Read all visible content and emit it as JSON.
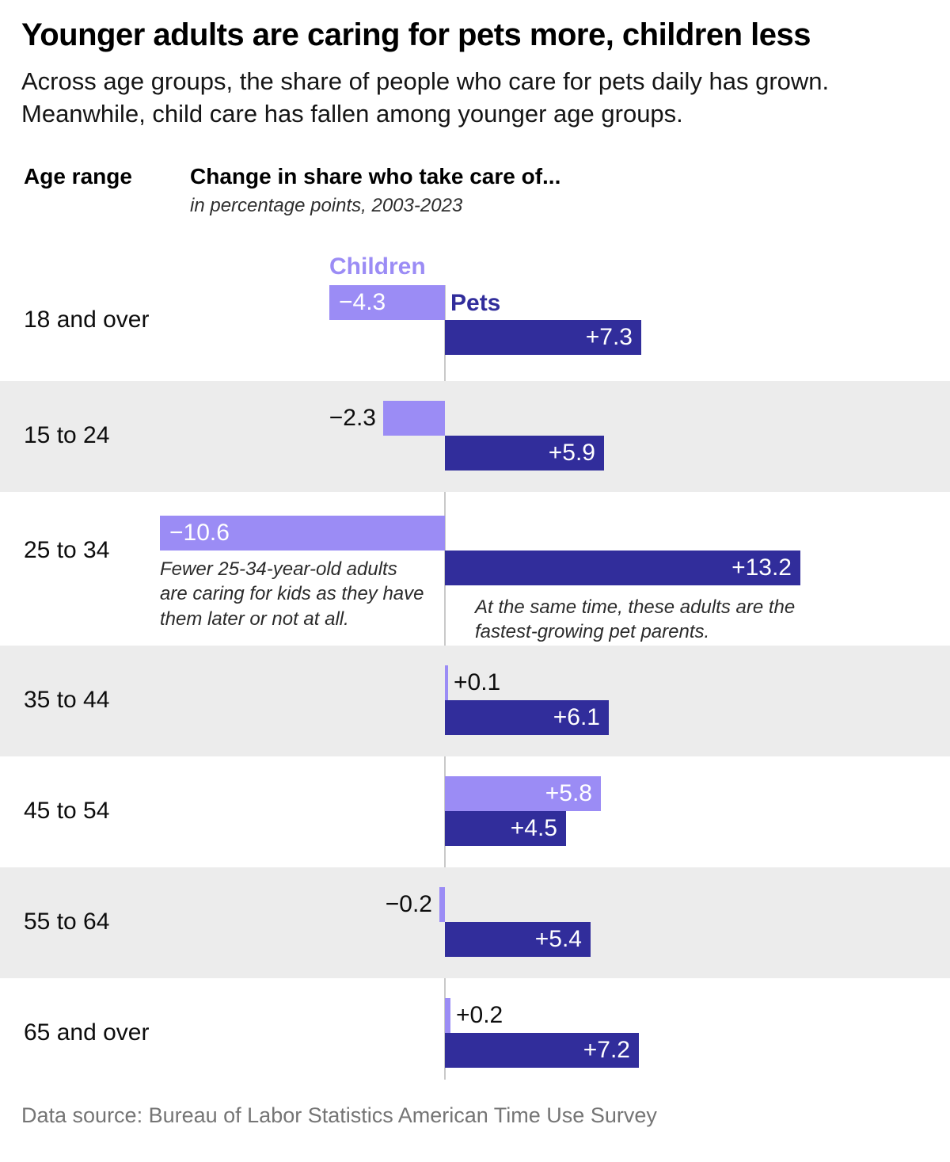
{
  "header": {
    "title": "Younger adults are caring for pets more, children less",
    "subtitle": "Across age groups, the share of people who care for pets daily has grown. Meanwhile, child care has fallen among younger age groups.",
    "col_age": "Age range",
    "col_change": "Change in share who take care of...",
    "col_change_sub": "in percentage points, 2003-2023"
  },
  "colors": {
    "children": "#9b8cf5",
    "pets": "#312d9b",
    "row_alt": "#ececec",
    "axis_line": "#c9c9c9",
    "inside_label": "#ffffff",
    "outside_label": "#0d0d0d",
    "source_text": "#757575"
  },
  "chart_data": {
    "type": "bar",
    "orientation": "horizontal-diverging",
    "title": "Change in share who take care of...",
    "units": "percentage points",
    "period": "2003-2023",
    "axis": {
      "zero_centered": true,
      "approx_range": [
        -11,
        14
      ],
      "gridlines": false
    },
    "legend_position": "first-row-inline",
    "categories": [
      "18 and over",
      "15 to 24",
      "25 to 34",
      "35 to 44",
      "45 to 54",
      "55 to 64",
      "65 and over"
    ],
    "series": [
      {
        "name": "Children",
        "values": [
          -4.3,
          -2.3,
          -10.6,
          0.1,
          5.8,
          -0.2,
          0.2
        ],
        "labels": [
          "−4.3",
          "−2.3",
          "−10.6",
          "+0.1",
          "+5.8",
          "−0.2",
          "+0.2"
        ]
      },
      {
        "name": "Pets",
        "values": [
          7.3,
          5.9,
          13.2,
          6.1,
          4.5,
          5.4,
          7.2
        ],
        "labels": [
          "+7.3",
          "+5.9",
          "+13.2",
          "+6.1",
          "+4.5",
          "+5.4",
          "+7.2"
        ]
      }
    ],
    "annotations": [
      {
        "row": "25 to 34",
        "series": "Children",
        "text": "Fewer 25-34-year-old adults are caring for kids as they have them later or not at all."
      },
      {
        "row": "25 to 34",
        "series": "Pets",
        "text": "At the same time, these adults are the fastest-growing pet parents."
      }
    ]
  },
  "footer": {
    "source": "Data source: Bureau of Labor Statistics American Time Use Survey"
  }
}
